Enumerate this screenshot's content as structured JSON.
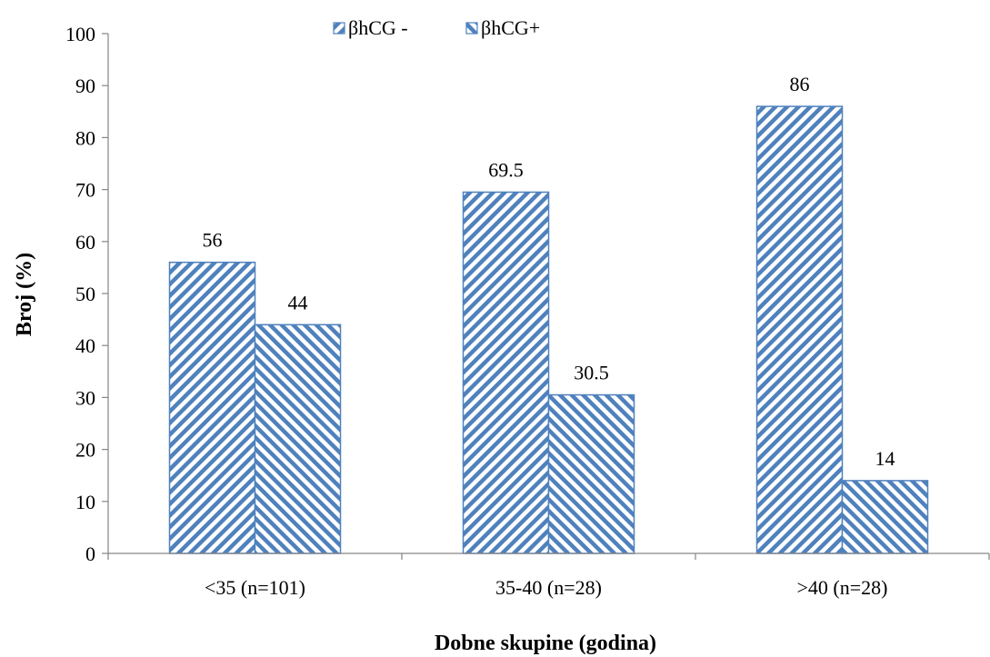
{
  "chart_data": {
    "type": "bar",
    "title": "",
    "xlabel": "Dobne skupine (godina)",
    "ylabel": "Broj (%)",
    "categories": [
      "<35 (n=101)",
      "35-40 (n=28)",
      ">40 (n=28)"
    ],
    "series": [
      {
        "name": "βhCG -",
        "values": [
          56,
          69.5,
          86
        ],
        "color": "#4f81bd",
        "pattern": "diagonal-up"
      },
      {
        "name": "βhCG+",
        "values": [
          44,
          30.5,
          14
        ],
        "color": "#4f81bd",
        "pattern": "diagonal-down"
      }
    ],
    "ylim": [
      0,
      100
    ],
    "yticks": [
      0,
      10,
      20,
      30,
      40,
      50,
      60,
      70,
      80,
      90,
      100
    ],
    "data_labels": [
      [
        "56",
        "69.5",
        "86"
      ],
      [
        "44",
        "30.5",
        "14"
      ]
    ],
    "grid": false,
    "legend_position": "top"
  }
}
